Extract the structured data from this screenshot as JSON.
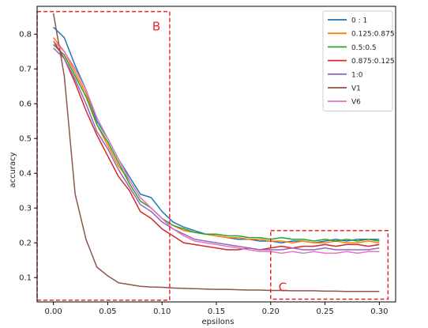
{
  "chart_data": {
    "type": "line",
    "title": "",
    "xlabel": "epsilons",
    "ylabel": "accuracy",
    "xlim": [
      -0.015,
      0.315
    ],
    "ylim": [
      0.03,
      0.88
    ],
    "xticks": [
      0.0,
      0.05,
      0.1,
      0.15,
      0.2,
      0.25,
      0.3
    ],
    "xtick_labels": [
      "0.00",
      "0.05",
      "0.10",
      "0.15",
      "0.20",
      "0.25",
      "0.30"
    ],
    "yticks": [
      0.1,
      0.2,
      0.3,
      0.4,
      0.5,
      0.6,
      0.7,
      0.8
    ],
    "ytick_labels": [
      "0.1",
      "0.2",
      "0.3",
      "0.4",
      "0.5",
      "0.6",
      "0.7",
      "0.8"
    ],
    "grid": false,
    "legend_position": "top-right",
    "x": [
      0.0,
      0.01,
      0.02,
      0.03,
      0.04,
      0.05,
      0.06,
      0.07,
      0.08,
      0.09,
      0.1,
      0.11,
      0.12,
      0.13,
      0.14,
      0.15,
      0.16,
      0.17,
      0.18,
      0.19,
      0.2,
      0.21,
      0.22,
      0.23,
      0.24,
      0.25,
      0.26,
      0.27,
      0.28,
      0.29,
      0.3
    ],
    "series": [
      {
        "name": "0 : 1",
        "color": "#1f77b4",
        "values": [
          0.82,
          0.79,
          0.71,
          0.64,
          0.55,
          0.5,
          0.44,
          0.39,
          0.34,
          0.33,
          0.29,
          0.26,
          0.245,
          0.235,
          0.225,
          0.22,
          0.215,
          0.21,
          0.21,
          0.205,
          0.205,
          0.2,
          0.205,
          0.205,
          0.2,
          0.205,
          0.21,
          0.205,
          0.21,
          0.21,
          0.21
        ]
      },
      {
        "name": "0.125:0.875",
        "color": "#ff7f0e",
        "values": [
          0.79,
          0.75,
          0.69,
          0.63,
          0.54,
          0.48,
          0.42,
          0.38,
          0.33,
          0.3,
          0.27,
          0.25,
          0.235,
          0.23,
          0.225,
          0.22,
          0.215,
          0.215,
          0.21,
          0.21,
          0.205,
          0.205,
          0.2,
          0.205,
          0.2,
          0.2,
          0.205,
          0.2,
          0.2,
          0.205,
          0.2
        ]
      },
      {
        "name": "0.5:0.5",
        "color": "#2ca02c",
        "values": [
          0.77,
          0.74,
          0.68,
          0.62,
          0.54,
          0.49,
          0.43,
          0.37,
          0.32,
          0.3,
          0.27,
          0.25,
          0.24,
          0.23,
          0.225,
          0.225,
          0.22,
          0.22,
          0.215,
          0.215,
          0.21,
          0.215,
          0.21,
          0.21,
          0.205,
          0.21,
          0.205,
          0.21,
          0.205,
          0.21,
          0.205
        ]
      },
      {
        "name": "0.875:0.125",
        "color": "#d62728",
        "values": [
          0.78,
          0.73,
          0.66,
          0.58,
          0.51,
          0.45,
          0.39,
          0.35,
          0.29,
          0.27,
          0.24,
          0.22,
          0.2,
          0.195,
          0.19,
          0.185,
          0.18,
          0.18,
          0.185,
          0.18,
          0.185,
          0.19,
          0.185,
          0.19,
          0.19,
          0.195,
          0.19,
          0.195,
          0.195,
          0.19,
          0.195
        ]
      },
      {
        "name": "1:0",
        "color": "#9467bd",
        "values": [
          0.76,
          0.73,
          0.67,
          0.6,
          0.52,
          0.47,
          0.41,
          0.36,
          0.31,
          0.29,
          0.26,
          0.24,
          0.225,
          0.21,
          0.205,
          0.2,
          0.195,
          0.19,
          0.185,
          0.18,
          0.18,
          0.18,
          0.185,
          0.18,
          0.18,
          0.185,
          0.18,
          0.18,
          0.18,
          0.18,
          0.185
        ]
      },
      {
        "name": "V1",
        "color": "#8c564b",
        "values": [
          0.86,
          0.68,
          0.34,
          0.21,
          0.13,
          0.105,
          0.085,
          0.08,
          0.075,
          0.073,
          0.072,
          0.07,
          0.069,
          0.068,
          0.067,
          0.066,
          0.066,
          0.065,
          0.064,
          0.064,
          0.063,
          0.063,
          0.062,
          0.062,
          0.062,
          0.061,
          0.061,
          0.06,
          0.06,
          0.06,
          0.06
        ]
      },
      {
        "name": "V6",
        "color": "#e377c2",
        "values": [
          0.78,
          0.75,
          0.7,
          0.64,
          0.56,
          0.5,
          0.44,
          0.38,
          0.33,
          0.3,
          0.27,
          0.24,
          0.22,
          0.205,
          0.2,
          0.195,
          0.19,
          0.185,
          0.18,
          0.175,
          0.175,
          0.17,
          0.175,
          0.17,
          0.175,
          0.17,
          0.17,
          0.175,
          0.17,
          0.175,
          0.175
        ]
      }
    ],
    "annotations": [
      {
        "label": "B",
        "color": "#e8262a",
        "x_range": [
          -0.015,
          0.107
        ],
        "y_range": [
          0.035,
          0.865
        ]
      },
      {
        "label": "C",
        "color": "#e8262a",
        "x_range": [
          0.2,
          0.308
        ],
        "y_range": [
          0.038,
          0.235
        ]
      }
    ]
  }
}
